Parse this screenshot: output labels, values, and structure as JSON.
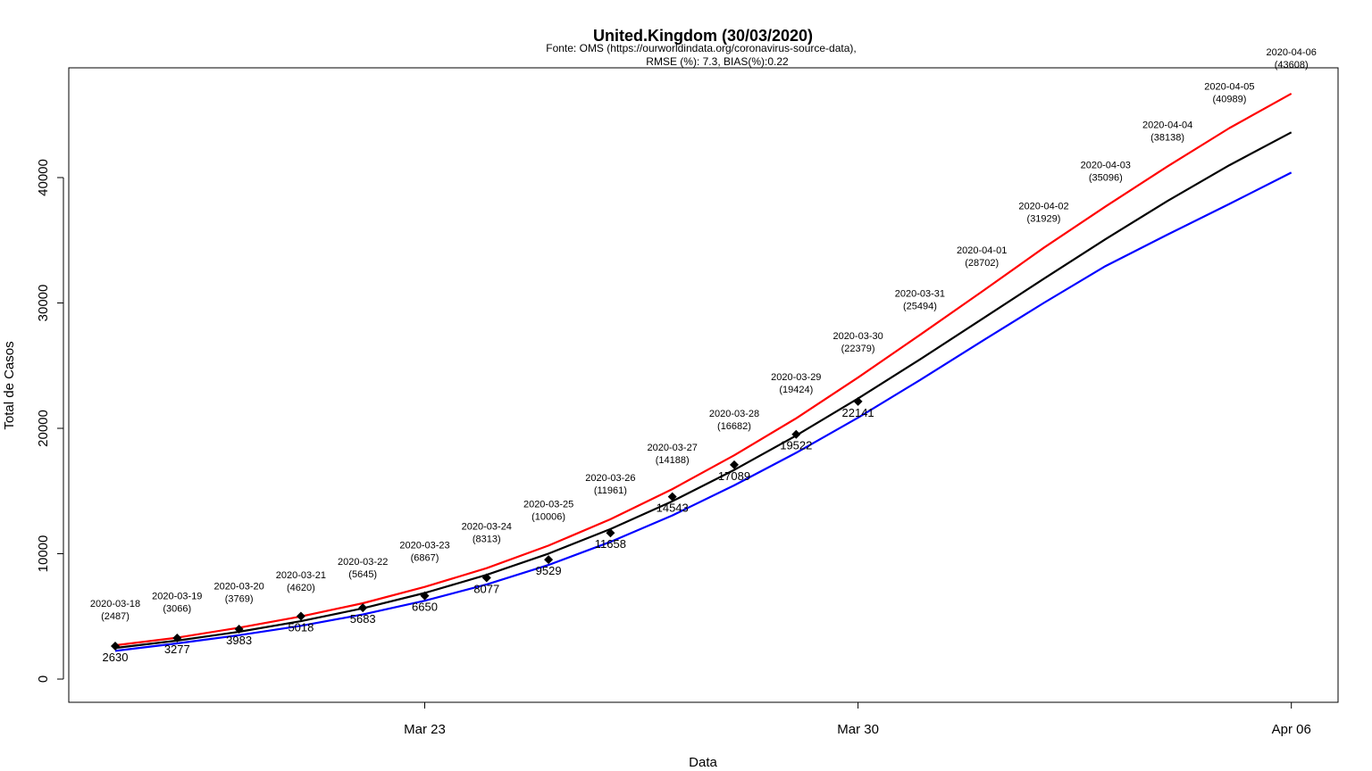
{
  "chart_data": {
    "type": "line",
    "title": "United.Kingdom (30/03/2020)",
    "subtitle_lines": [
      "Fonte: OMS (https://ourworldindata.org/coronavirus-source-data),",
      "RMSE (%): 7.3, BIAS(%):0.22"
    ],
    "xlabel": "Data",
    "ylabel": "Total de Casos",
    "ylim": [
      0,
      46000
    ],
    "y_ticks": [
      0,
      10000,
      20000,
      30000,
      40000
    ],
    "x_ticks": [
      {
        "date": "2020-03-23",
        "label": "Mar 23"
      },
      {
        "date": "2020-03-30",
        "label": "Mar 30"
      },
      {
        "date": "2020-04-06",
        "label": "Apr 06"
      }
    ],
    "dates": [
      "2020-03-18",
      "2020-03-19",
      "2020-03-20",
      "2020-03-21",
      "2020-03-22",
      "2020-03-23",
      "2020-03-24",
      "2020-03-25",
      "2020-03-26",
      "2020-03-27",
      "2020-03-28",
      "2020-03-29",
      "2020-03-30",
      "2020-03-31",
      "2020-04-01",
      "2020-04-02",
      "2020-04-03",
      "2020-04-04",
      "2020-04-05",
      "2020-04-06"
    ],
    "predicted_labels": [
      "(2487)",
      "(3066)",
      "(3769)",
      "(4620)",
      "(5645)",
      "(6867)",
      "(8313)",
      "(10006)",
      "(11961)",
      "(14188)",
      "(16682)",
      "(19424)",
      "(22379)",
      "(25494)",
      "(28702)",
      "(31929)",
      "(35096)",
      "(38138)",
      "(40989)",
      "(43608)"
    ],
    "observed": {
      "dates": [
        "2020-03-18",
        "2020-03-19",
        "2020-03-20",
        "2020-03-21",
        "2020-03-22",
        "2020-03-23",
        "2020-03-24",
        "2020-03-25",
        "2020-03-26",
        "2020-03-27",
        "2020-03-28",
        "2020-03-29",
        "2020-03-30"
      ],
      "values": [
        2630,
        3277,
        3983,
        5018,
        5683,
        6650,
        8077,
        9529,
        11658,
        14543,
        17089,
        19522,
        22141
      ],
      "labels": [
        "2630",
        "3277",
        "3983",
        "5018",
        "5683",
        "6650",
        "8077",
        "9529",
        "11658",
        "14543",
        "17089",
        "19522",
        "22141"
      ]
    },
    "series": [
      {
        "color": "#ff0000",
        "values": [
          2700,
          3300,
          4100,
          5000,
          6050,
          7350,
          8850,
          10650,
          12750,
          15150,
          17850,
          20800,
          24050,
          27450,
          30900,
          34400,
          37700,
          40900,
          43950,
          46700
        ]
      },
      {
        "color": "#000000",
        "values": [
          2487,
          3066,
          3769,
          4620,
          5645,
          6867,
          8313,
          10006,
          11961,
          14188,
          16682,
          19424,
          22379,
          25494,
          28702,
          31929,
          35096,
          38138,
          40989,
          43608
        ]
      },
      {
        "color": "#0000ff",
        "values": [
          2250,
          2850,
          3500,
          4250,
          5150,
          6250,
          7550,
          9100,
          10950,
          13050,
          15450,
          18050,
          20850,
          23850,
          26950,
          30000,
          32950,
          35450,
          37900,
          40400
        ]
      }
    ],
    "legend": "none",
    "grid": false
  }
}
